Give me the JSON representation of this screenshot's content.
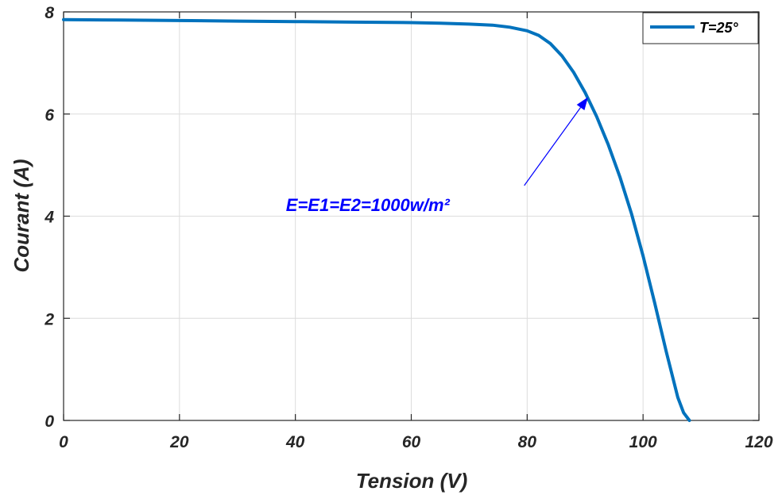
{
  "chart_data": {
    "type": "line",
    "title": "",
    "xlabel": "Tension (V)",
    "ylabel": "Courant (A)",
    "xlim": [
      0,
      120
    ],
    "ylim": [
      0,
      8
    ],
    "xticks": [
      "0",
      "20",
      "40",
      "60",
      "80",
      "100",
      "120"
    ],
    "yticks": [
      "0",
      "2",
      "4",
      "6",
      "8"
    ],
    "grid": true,
    "legend_position": "top-right",
    "series": [
      {
        "name": "T=25°",
        "color": "#0072BD",
        "x": [
          0,
          10,
          20,
          30,
          40,
          50,
          60,
          65,
          70,
          74,
          77,
          80,
          82,
          84,
          86,
          88,
          90,
          92,
          94,
          96,
          98,
          100,
          102,
          104,
          106,
          107,
          108
        ],
        "y": [
          7.85,
          7.84,
          7.83,
          7.82,
          7.81,
          7.8,
          7.79,
          7.78,
          7.76,
          7.74,
          7.7,
          7.63,
          7.54,
          7.38,
          7.14,
          6.82,
          6.42,
          5.95,
          5.4,
          4.77,
          4.05,
          3.22,
          2.3,
          1.35,
          0.45,
          0.15,
          0.0
        ]
      }
    ],
    "annotations": [
      {
        "text": "E=E1=E2=1000w/m²",
        "color": "#0000FF",
        "text_at": [
          52.5,
          4.1
        ],
        "arrow_from": [
          79.5,
          4.6
        ],
        "arrow_to": [
          90.5,
          6.33
        ]
      }
    ]
  }
}
